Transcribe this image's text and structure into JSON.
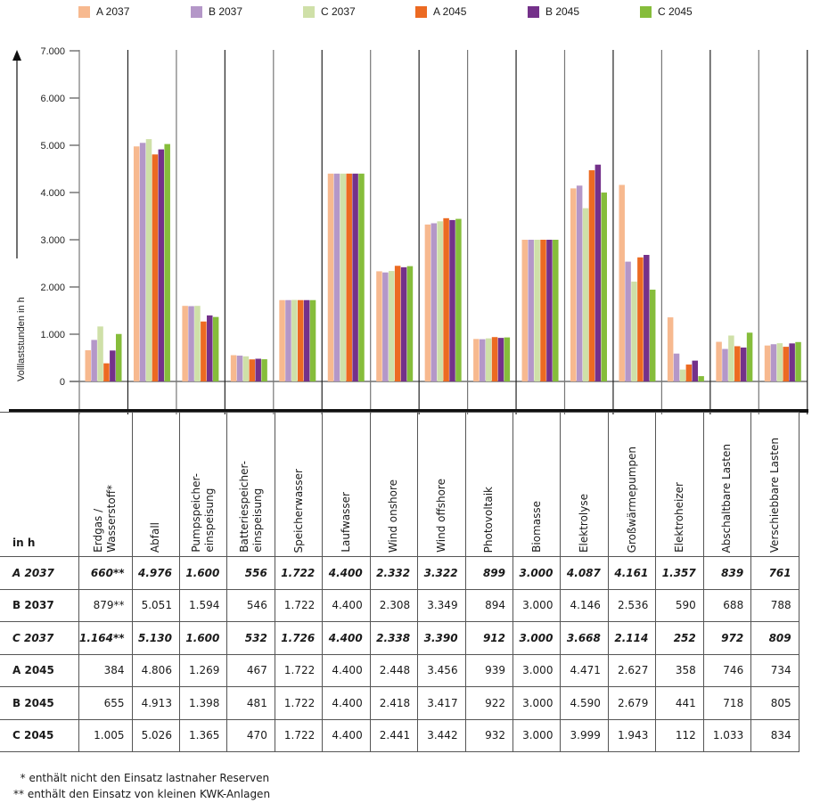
{
  "legend": [
    {
      "label": "A 2037",
      "color": "#f7b98f"
    },
    {
      "label": "B 2037",
      "color": "#b497c8"
    },
    {
      "label": "C 2037",
      "color": "#cfe0a8"
    },
    {
      "label": "A 2045",
      "color": "#ec6a22"
    },
    {
      "label": "B 2045",
      "color": "#74318a"
    },
    {
      "label": "C 2045",
      "color": "#86bd3b"
    }
  ],
  "chart_data": {
    "type": "bar",
    "title": "",
    "xlabel": "",
    "ylabel": "Volllaststunden in h",
    "ylim": [
      0,
      7000
    ],
    "yticks": [
      0,
      1000,
      2000,
      3000,
      4000,
      5000,
      6000,
      7000
    ],
    "ytick_labels": [
      "0",
      "1.000",
      "2.000",
      "3.000",
      "4.000",
      "5.000",
      "6.000",
      "7.000"
    ],
    "grid": false,
    "legend_position": "top",
    "categories": [
      "Erdgas / Wasserstoff*",
      "Abfall",
      "Pumpspeicher-einspeisung",
      "Batteriespeicher-einspeisung",
      "Speicherwasser",
      "Laufwasser",
      "Wind onshore",
      "Wind offshore",
      "Photovoltaik",
      "Biomasse",
      "Elektrolyse",
      "Großwärmepumpen",
      "Elektroheizer",
      "Abschaltbare Lasten",
      "Verschiebbare Lasten"
    ],
    "series": [
      {
        "name": "A 2037",
        "values": [
          660,
          4976,
          1600,
          556,
          1722,
          4400,
          2332,
          3322,
          899,
          3000,
          4087,
          4161,
          1357,
          839,
          761
        ]
      },
      {
        "name": "B 2037",
        "values": [
          879,
          5051,
          1594,
          546,
          1722,
          4400,
          2308,
          3349,
          894,
          3000,
          4146,
          2536,
          590,
          688,
          788
        ]
      },
      {
        "name": "C 2037",
        "values": [
          1164,
          5130,
          1600,
          532,
          1726,
          4400,
          2338,
          3390,
          912,
          3000,
          3668,
          2114,
          252,
          972,
          809
        ]
      },
      {
        "name": "A 2045",
        "values": [
          384,
          4806,
          1269,
          467,
          1722,
          4400,
          2448,
          3456,
          939,
          3000,
          4471,
          2627,
          358,
          746,
          734
        ]
      },
      {
        "name": "B 2045",
        "values": [
          655,
          4913,
          1398,
          481,
          1722,
          4400,
          2418,
          3417,
          922,
          3000,
          4590,
          2679,
          441,
          718,
          805
        ]
      },
      {
        "name": "C 2045",
        "values": [
          1005,
          5026,
          1365,
          470,
          1722,
          4400,
          2441,
          3442,
          932,
          3000,
          3999,
          1943,
          112,
          1033,
          834
        ]
      }
    ]
  },
  "table": {
    "unit_label": "in h",
    "headers": [
      "Erdgas /\nWasserstoff*",
      "Abfall",
      "Pumpspeicher-\neinspeisung",
      "Batteriespeicher-\neinspeisung",
      "Speicherwasser",
      "Laufwasser",
      "Wind onshore",
      "Wind offshore",
      "Photovoltaik",
      "Biomasse",
      "Elektrolyse",
      "Großwärmepumpen",
      "Elektroheizer",
      "Abschaltbare Lasten",
      "Verschiebbare Lasten"
    ],
    "rows": [
      {
        "label": "A 2037",
        "italic": true,
        "cells": [
          "660**",
          "4.976",
          "1.600",
          "556",
          "1.722",
          "4.400",
          "2.332",
          "3.322",
          "899",
          "3.000",
          "4.087",
          "4.161",
          "1.357",
          "839",
          "761"
        ]
      },
      {
        "label": "B 2037",
        "italic": false,
        "cells": [
          "879**",
          "5.051",
          "1.594",
          "546",
          "1.722",
          "4.400",
          "2.308",
          "3.349",
          "894",
          "3.000",
          "4.146",
          "2.536",
          "590",
          "688",
          "788"
        ]
      },
      {
        "label": "C 2037",
        "italic": true,
        "cells": [
          "1.164**",
          "5.130",
          "1.600",
          "532",
          "1.726",
          "4.400",
          "2.338",
          "3.390",
          "912",
          "3.000",
          "3.668",
          "2.114",
          "252",
          "972",
          "809"
        ]
      },
      {
        "label": "A 2045",
        "italic": false,
        "cells": [
          "384",
          "4.806",
          "1.269",
          "467",
          "1.722",
          "4.400",
          "2.448",
          "3.456",
          "939",
          "3.000",
          "4.471",
          "2.627",
          "358",
          "746",
          "734"
        ]
      },
      {
        "label": "B 2045",
        "italic": false,
        "cells": [
          "655",
          "4.913",
          "1.398",
          "481",
          "1.722",
          "4.400",
          "2.418",
          "3.417",
          "922",
          "3.000",
          "4.590",
          "2.679",
          "441",
          "718",
          "805"
        ]
      },
      {
        "label": "C 2045",
        "italic": false,
        "cells": [
          "1.005",
          "5.026",
          "1.365",
          "470",
          "1.722",
          "4.400",
          "2.441",
          "3.442",
          "932",
          "3.000",
          "3.999",
          "1.943",
          "112",
          "1.033",
          "834"
        ]
      }
    ]
  },
  "footnotes": [
    "  * enthält nicht den Einsatz lastnaher Reserven",
    "** enthält den Einsatz von kleinen KWK-Anlagen"
  ]
}
